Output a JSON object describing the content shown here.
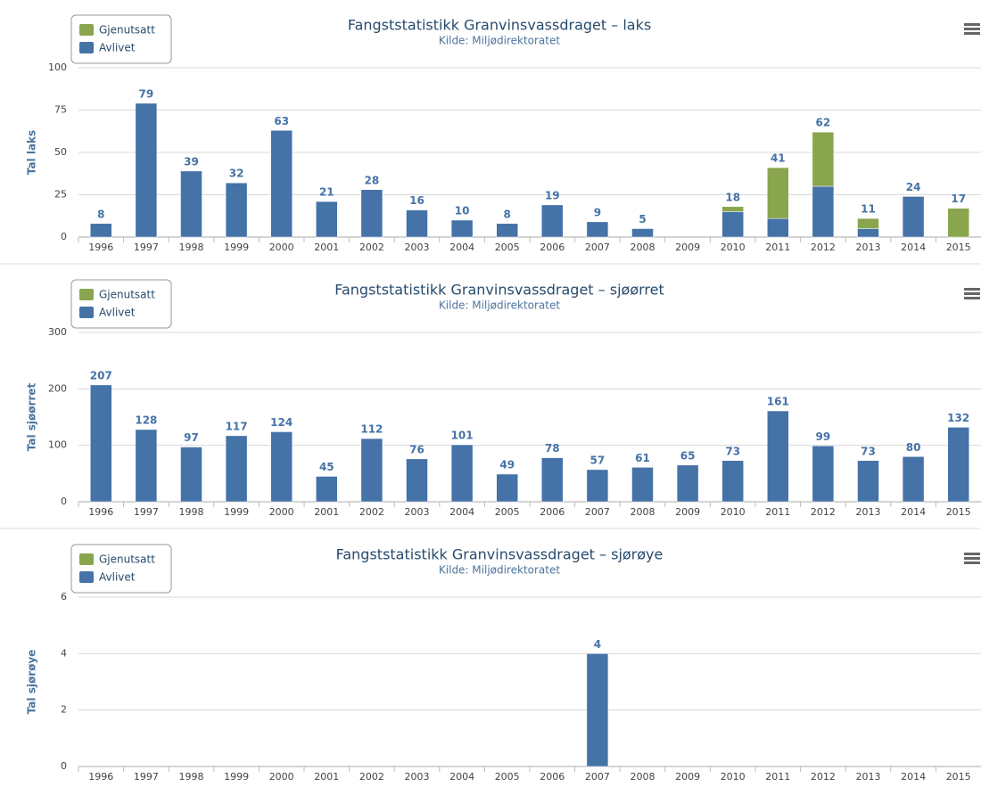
{
  "chart_data": [
    {
      "type": "bar",
      "stacked": true,
      "title": "Fangststatistikk Granvinsvassdraget – laks",
      "subtitle": "Kilde: Miljødirektoratet",
      "y_label": "Tal laks",
      "categories": [
        "1996",
        "1997",
        "1998",
        "1999",
        "2000",
        "2001",
        "2002",
        "2003",
        "2004",
        "2005",
        "2006",
        "2007",
        "2008",
        "2009",
        "2010",
        "2011",
        "2012",
        "2013",
        "2014",
        "2015"
      ],
      "series": [
        {
          "name": "Avlivet",
          "color": "#4572a7",
          "values": [
            8,
            79,
            39,
            32,
            63,
            21,
            28,
            16,
            10,
            8,
            19,
            9,
            5,
            null,
            15,
            11,
            30,
            5,
            24,
            0
          ]
        },
        {
          "name": "Gjenutsatt",
          "color": "#89a54e",
          "values": [
            0,
            0,
            0,
            0,
            0,
            0,
            0,
            0,
            0,
            0,
            0,
            0,
            0,
            null,
            3,
            30,
            32,
            6,
            0,
            17
          ]
        }
      ],
      "totals": [
        8,
        79,
        39,
        32,
        63,
        21,
        28,
        16,
        10,
        8,
        19,
        9,
        5,
        null,
        18,
        41,
        62,
        11,
        24,
        17
      ],
      "ylim": [
        0,
        100
      ],
      "yticks": [
        0,
        25,
        50,
        75,
        100
      ],
      "grid": true,
      "legend": "top-left"
    },
    {
      "type": "bar",
      "stacked": true,
      "title": "Fangststatistikk Granvinsvassdraget – sjøørret",
      "subtitle": "Kilde: Miljødirektoratet",
      "y_label": "Tal sjøørret",
      "categories": [
        "1996",
        "1997",
        "1998",
        "1999",
        "2000",
        "2001",
        "2002",
        "2003",
        "2004",
        "2005",
        "2006",
        "2007",
        "2008",
        "2009",
        "2010",
        "2011",
        "2012",
        "2013",
        "2014",
        "2015"
      ],
      "series": [
        {
          "name": "Avlivet",
          "color": "#4572a7",
          "values": [
            207,
            128,
            97,
            117,
            124,
            45,
            112,
            76,
            101,
            49,
            78,
            57,
            61,
            65,
            73,
            161,
            99,
            73,
            80,
            132
          ]
        },
        {
          "name": "Gjenutsatt",
          "color": "#89a54e",
          "values": [
            null,
            null,
            null,
            null,
            null,
            null,
            null,
            null,
            null,
            null,
            null,
            null,
            null,
            null,
            null,
            null,
            null,
            null,
            null,
            null
          ]
        }
      ],
      "totals": [
        207,
        128,
        97,
        117,
        124,
        45,
        112,
        76,
        101,
        49,
        78,
        57,
        61,
        65,
        73,
        161,
        99,
        73,
        80,
        132
      ],
      "ylim": [
        0,
        300
      ],
      "yticks": [
        0,
        100,
        200,
        300
      ],
      "grid": true,
      "legend": "top-left"
    },
    {
      "type": "bar",
      "stacked": true,
      "title": "Fangststatistikk Granvinsvassdraget – sjørøye",
      "subtitle": "Kilde: Miljødirektoratet",
      "y_label": "Tal sjørøye",
      "categories": [
        "1996",
        "1997",
        "1998",
        "1999",
        "2000",
        "2001",
        "2002",
        "2003",
        "2004",
        "2005",
        "2006",
        "2007",
        "2008",
        "2009",
        "2010",
        "2011",
        "2012",
        "2013",
        "2014",
        "2015"
      ],
      "series": [
        {
          "name": "Avlivet",
          "color": "#4572a7",
          "values": [
            null,
            null,
            null,
            null,
            null,
            null,
            null,
            null,
            null,
            null,
            null,
            4,
            null,
            null,
            null,
            null,
            null,
            null,
            null,
            null
          ]
        },
        {
          "name": "Gjenutsatt",
          "color": "#89a54e",
          "values": [
            null,
            null,
            null,
            null,
            null,
            null,
            null,
            null,
            null,
            null,
            null,
            null,
            null,
            null,
            null,
            null,
            null,
            null,
            null,
            null
          ]
        }
      ],
      "totals": [
        null,
        null,
        null,
        null,
        null,
        null,
        null,
        null,
        null,
        null,
        null,
        4,
        null,
        null,
        null,
        null,
        null,
        null,
        null,
        null
      ],
      "ylim": [
        0,
        6
      ],
      "yticks": [
        0,
        2,
        4,
        6
      ],
      "grid": true,
      "legend": "top-left"
    }
  ]
}
